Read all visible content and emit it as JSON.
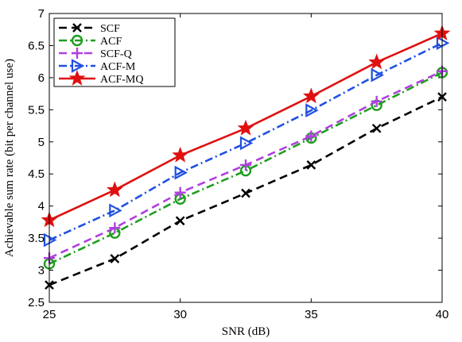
{
  "chart_data": {
    "type": "line",
    "title": "",
    "xlabel": "SNR (dB)",
    "ylabel": "Achievable sum rate (bit per channel use)",
    "xlim": [
      25,
      40
    ],
    "ylim": [
      2.5,
      7
    ],
    "xticks": [
      "25",
      "30",
      "35",
      "40"
    ],
    "yticks": [
      "2.5",
      "3",
      "3.5",
      "4",
      "4.5",
      "5",
      "5.5",
      "6",
      "6.5",
      "7"
    ],
    "grid": false,
    "legend_position": "top-left",
    "x": [
      25,
      27.5,
      30,
      32.5,
      35,
      37.5,
      40
    ],
    "series": [
      {
        "name": "SCF",
        "color": "#000000",
        "dash": "dashed",
        "marker": "x-mark",
        "values": [
          2.77,
          3.18,
          3.77,
          4.2,
          4.64,
          5.21,
          5.7
        ]
      },
      {
        "name": "ACF",
        "color": "#1f9e1f",
        "dash": "dash-dot",
        "marker": "circle",
        "values": [
          3.1,
          3.58,
          4.11,
          4.55,
          5.06,
          5.57,
          6.08
        ]
      },
      {
        "name": "SCF-Q",
        "color": "#b040e0",
        "dash": "dashed",
        "marker": "plus",
        "values": [
          3.19,
          3.66,
          4.21,
          4.64,
          5.09,
          5.63,
          6.1
        ]
      },
      {
        "name": "ACF-M",
        "color": "#2050e0",
        "dash": "dash-dot",
        "marker": "triangle-right",
        "values": [
          3.47,
          3.93,
          4.52,
          4.98,
          5.49,
          6.04,
          6.54
        ]
      },
      {
        "name": "ACF-MQ",
        "color": "#e01010",
        "dash": "solid",
        "marker": "star",
        "values": [
          3.78,
          4.25,
          4.79,
          5.21,
          5.71,
          6.24,
          6.69
        ]
      }
    ]
  }
}
